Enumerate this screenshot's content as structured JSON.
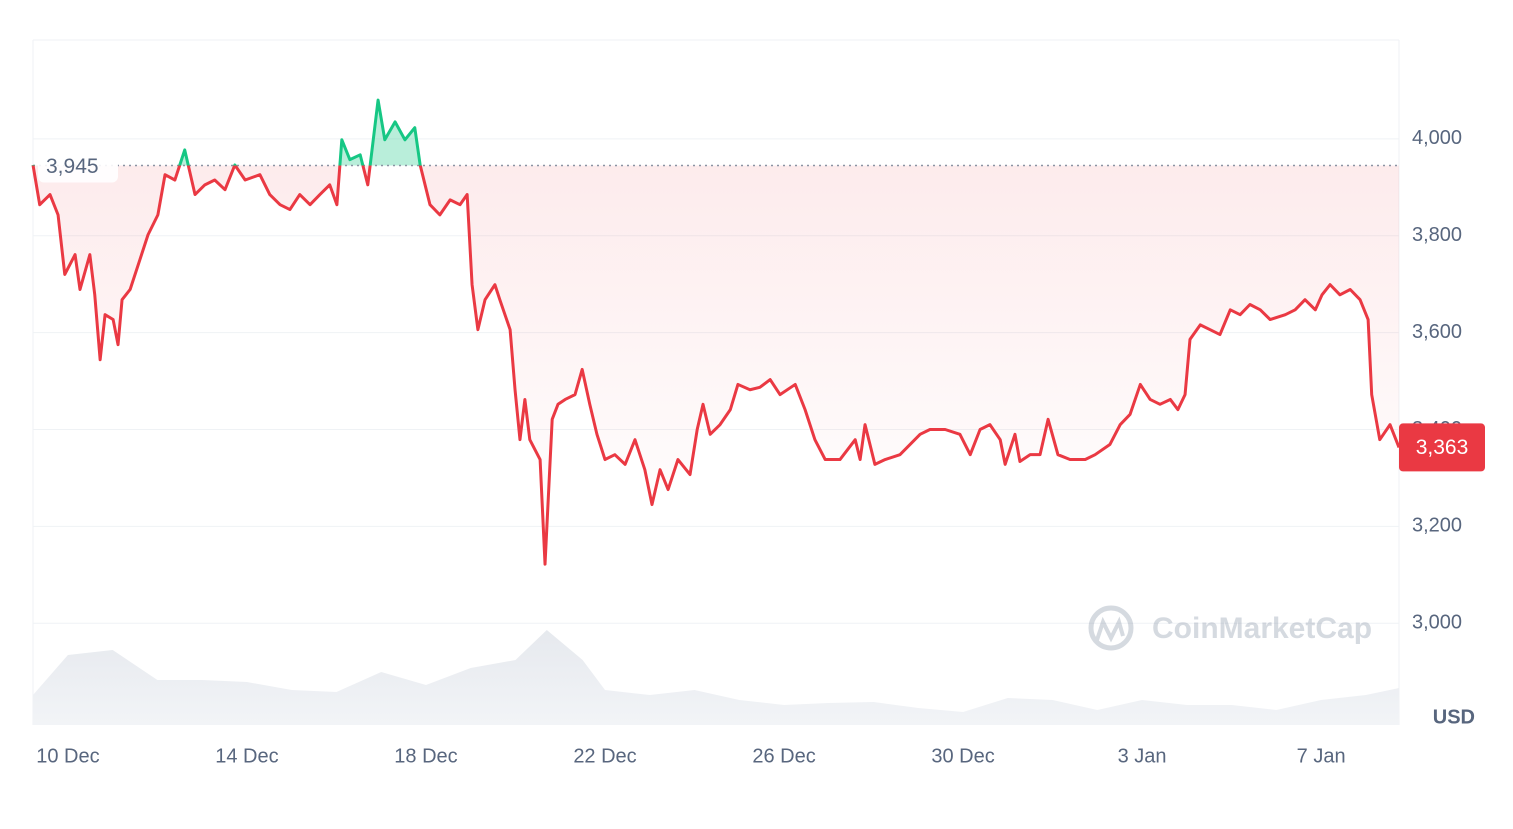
{
  "chart_data": {
    "type": "line",
    "x": [
      -0.78,
      -0.63,
      -0.4,
      -0.22,
      -0.07,
      0.16,
      0.27,
      0.49,
      0.6,
      0.72,
      0.83,
      1.01,
      1.12,
      1.21,
      1.39,
      1.61,
      1.79,
      2.01,
      2.17,
      2.39,
      2.61,
      2.84,
      3.06,
      3.28,
      3.51,
      3.73,
      3.96,
      4.29,
      4.51,
      4.74,
      4.96,
      5.18,
      5.41,
      5.63,
      5.85,
      6.01,
      6.12,
      6.3,
      6.53,
      6.7,
      6.93,
      7.08,
      7.31,
      7.53,
      7.75,
      7.87,
      8.09,
      8.31,
      8.54,
      8.76,
      8.92,
      9.03,
      9.16,
      9.32,
      9.54,
      9.65,
      9.88,
      9.99,
      10.1,
      10.21,
      10.32,
      10.55,
      10.66,
      10.82,
      10.95,
      11.11,
      11.33,
      11.49,
      11.66,
      11.82,
      12.0,
      12.22,
      12.45,
      12.67,
      12.89,
      13.05,
      13.23,
      13.41,
      13.63,
      13.9,
      14.06,
      14.19,
      14.35,
      14.57,
      14.8,
      14.97,
      15.24,
      15.46,
      15.69,
      15.91,
      16.25,
      16.47,
      16.69,
      16.92,
      17.25,
      17.59,
      17.7,
      17.81,
      18.03,
      18.26,
      18.59,
      19.04,
      19.26,
      19.6,
      19.93,
      20.16,
      20.38,
      20.6,
      20.83,
      20.94,
      21.16,
      21.27,
      21.5,
      21.72,
      21.9,
      22.12,
      22.39,
      22.73,
      22.95,
      23.28,
      23.51,
      23.73,
      23.96,
      24.18,
      24.4,
      24.63,
      24.8,
      24.96,
      25.07,
      25.3,
      25.52,
      25.74,
      25.97,
      26.19,
      26.41,
      26.64,
      26.86,
      27.2,
      27.42,
      27.64,
      27.87,
      28.02,
      28.2,
      28.42,
      28.65,
      28.87,
      29.05,
      29.13,
      29.31,
      29.54,
      29.74
    ],
    "values": [
      3946,
      3864,
      3885,
      3843,
      3720,
      3761,
      3689,
      3761,
      3678,
      3544,
      3637,
      3627,
      3575,
      3668,
      3689,
      3751,
      3802,
      3843,
      3926,
      3915,
      3977,
      3885,
      3905,
      3915,
      3895,
      3946,
      3915,
      3926,
      3885,
      3864,
      3854,
      3885,
      3864,
      3885,
      3905,
      3864,
      3998,
      3957,
      3967,
      3905,
      4080,
      3998,
      4035,
      3998,
      4023,
      3946,
      3864,
      3843,
      3874,
      3864,
      3885,
      3699,
      3606,
      3668,
      3699,
      3668,
      3606,
      3482,
      3379,
      3462,
      3379,
      3338,
      3122,
      3421,
      3452,
      3462,
      3472,
      3524,
      3452,
      3390,
      3338,
      3348,
      3328,
      3379,
      3317,
      3245,
      3317,
      3276,
      3338,
      3307,
      3400,
      3452,
      3390,
      3410,
      3441,
      3493,
      3482,
      3487,
      3503,
      3472,
      3493,
      3441,
      3379,
      3338,
      3338,
      3379,
      3338,
      3410,
      3328,
      3338,
      3348,
      3390,
      3400,
      3400,
      3390,
      3348,
      3400,
      3410,
      3379,
      3328,
      3390,
      3334,
      3348,
      3348,
      3421,
      3348,
      3338,
      3338,
      3348,
      3369,
      3410,
      3431,
      3493,
      3462,
      3452,
      3462,
      3441,
      3472,
      3586,
      3616,
      3606,
      3596,
      3647,
      3637,
      3658,
      3647,
      3627,
      3637,
      3647,
      3668,
      3647,
      3678,
      3699,
      3678,
      3689,
      3668,
      3627,
      3472,
      3379,
      3410,
      3363
    ],
    "colors": {
      "above": "#16c784",
      "below": "#ea3943"
    },
    "reference": {
      "value": 3945,
      "label": "3,945"
    },
    "last": {
      "value": 3363,
      "label": "3,363"
    },
    "volume": {
      "x": [
        -0.78,
        0,
        1,
        2,
        3,
        4,
        5,
        6,
        7,
        8,
        9,
        10,
        10.7,
        11.5,
        12,
        13,
        14,
        15,
        16,
        17,
        18,
        19,
        20,
        21,
        22,
        23,
        24,
        25,
        26,
        27,
        28,
        29,
        29.74
      ],
      "values": [
        30,
        70,
        75,
        45,
        45,
        43,
        35,
        33,
        53,
        40,
        57,
        65,
        95,
        65,
        35,
        30,
        35,
        25,
        20,
        22,
        23,
        17,
        13,
        27,
        25,
        15,
        25,
        20,
        20,
        15,
        25,
        30,
        37
      ]
    },
    "xlim": [
      -0.78,
      29.74
    ],
    "xticks": [
      {
        "value": 0,
        "label": "10 Dec"
      },
      {
        "value": 4,
        "label": "14 Dec"
      },
      {
        "value": 8,
        "label": "18 Dec"
      },
      {
        "value": 12,
        "label": "22 Dec"
      },
      {
        "value": 16,
        "label": "26 Dec"
      },
      {
        "value": 20,
        "label": "30 Dec"
      },
      {
        "value": 24,
        "label": "3 Jan"
      },
      {
        "value": 28,
        "label": "7 Jan"
      }
    ],
    "ylim": [
      2790,
      4204
    ],
    "yticks": [
      {
        "value": 3000,
        "label": "3,000"
      },
      {
        "value": 3200,
        "label": "3,200"
      },
      {
        "value": 3400,
        "label": "3,400"
      },
      {
        "value": 3600,
        "label": "3,600"
      },
      {
        "value": 3800,
        "label": "3,800"
      },
      {
        "value": 4000,
        "label": "4,000"
      }
    ],
    "grid": true,
    "unit": "USD",
    "watermark": "CoinMarketCap"
  }
}
